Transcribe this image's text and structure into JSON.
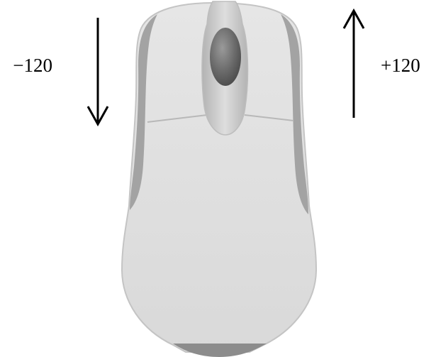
{
  "labels": {
    "scroll_down": "−120",
    "scroll_up": "+120"
  },
  "colors": {
    "body_fill": "#dcdcdc",
    "body_edge": "#c6c6c6",
    "side_grip": "#a3a3a3",
    "wheel_dark": "#5e5e5e",
    "cable_base": "#8c8c8c",
    "arrow": "#000000"
  }
}
